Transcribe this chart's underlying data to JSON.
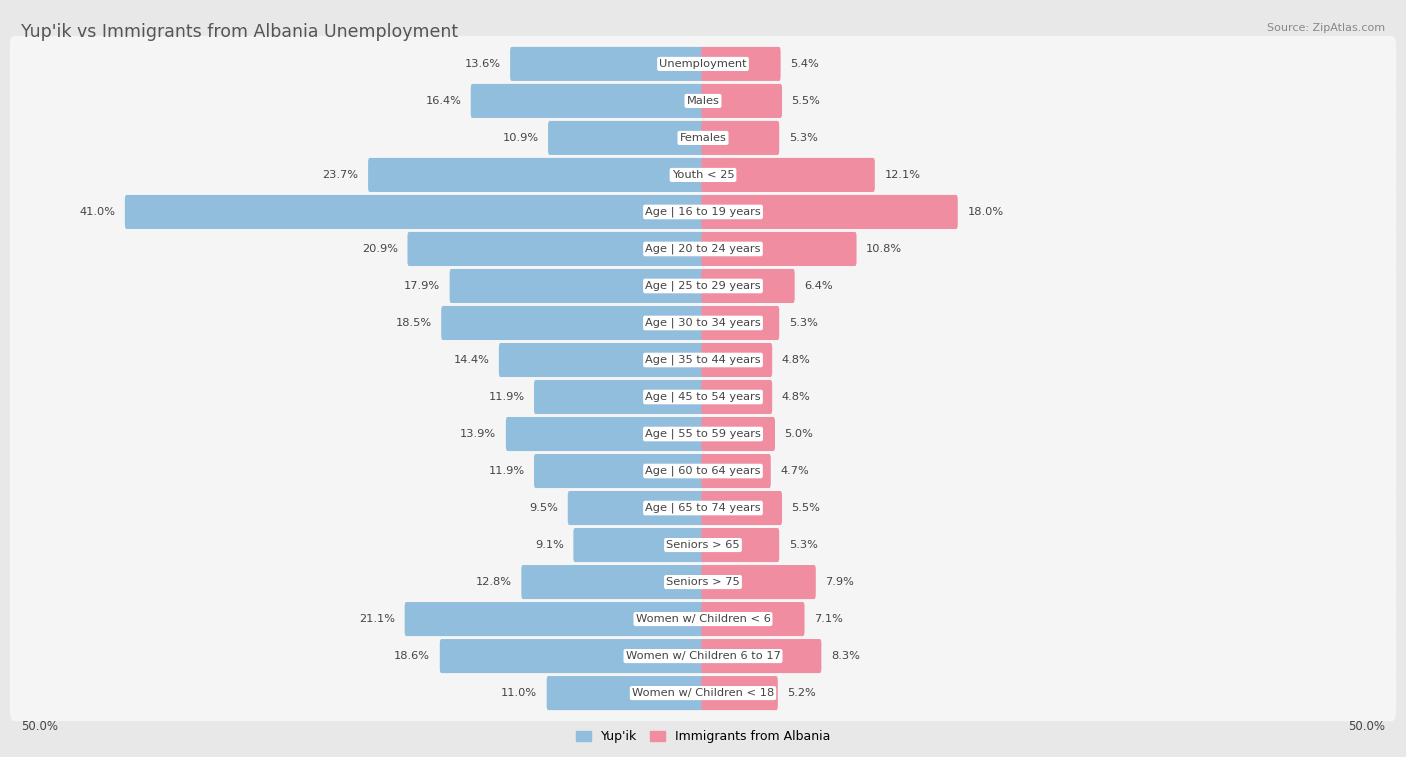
{
  "title": "Yup'ik vs Immigrants from Albania Unemployment",
  "source": "Source: ZipAtlas.com",
  "categories": [
    "Unemployment",
    "Males",
    "Females",
    "Youth < 25",
    "Age | 16 to 19 years",
    "Age | 20 to 24 years",
    "Age | 25 to 29 years",
    "Age | 30 to 34 years",
    "Age | 35 to 44 years",
    "Age | 45 to 54 years",
    "Age | 55 to 59 years",
    "Age | 60 to 64 years",
    "Age | 65 to 74 years",
    "Seniors > 65",
    "Seniors > 75",
    "Women w/ Children < 6",
    "Women w/ Children 6 to 17",
    "Women w/ Children < 18"
  ],
  "yupik_values": [
    13.6,
    16.4,
    10.9,
    23.7,
    41.0,
    20.9,
    17.9,
    18.5,
    14.4,
    11.9,
    13.9,
    11.9,
    9.5,
    9.1,
    12.8,
    21.1,
    18.6,
    11.0
  ],
  "albania_values": [
    5.4,
    5.5,
    5.3,
    12.1,
    18.0,
    10.8,
    6.4,
    5.3,
    4.8,
    4.8,
    5.0,
    4.7,
    5.5,
    5.3,
    7.9,
    7.1,
    8.3,
    5.2
  ],
  "yupik_color": "#92bede",
  "albania_color": "#f08da0",
  "bg_color": "#e8e8e8",
  "row_bg_color": "#f5f5f5",
  "max_value": 50.0,
  "label_yupik": "Yup'ik",
  "label_albania": "Immigrants from Albania",
  "axis_label": "50.0%",
  "title_color": "#555555",
  "source_color": "#888888",
  "value_color": "#444444",
  "cat_label_color": "#444444"
}
